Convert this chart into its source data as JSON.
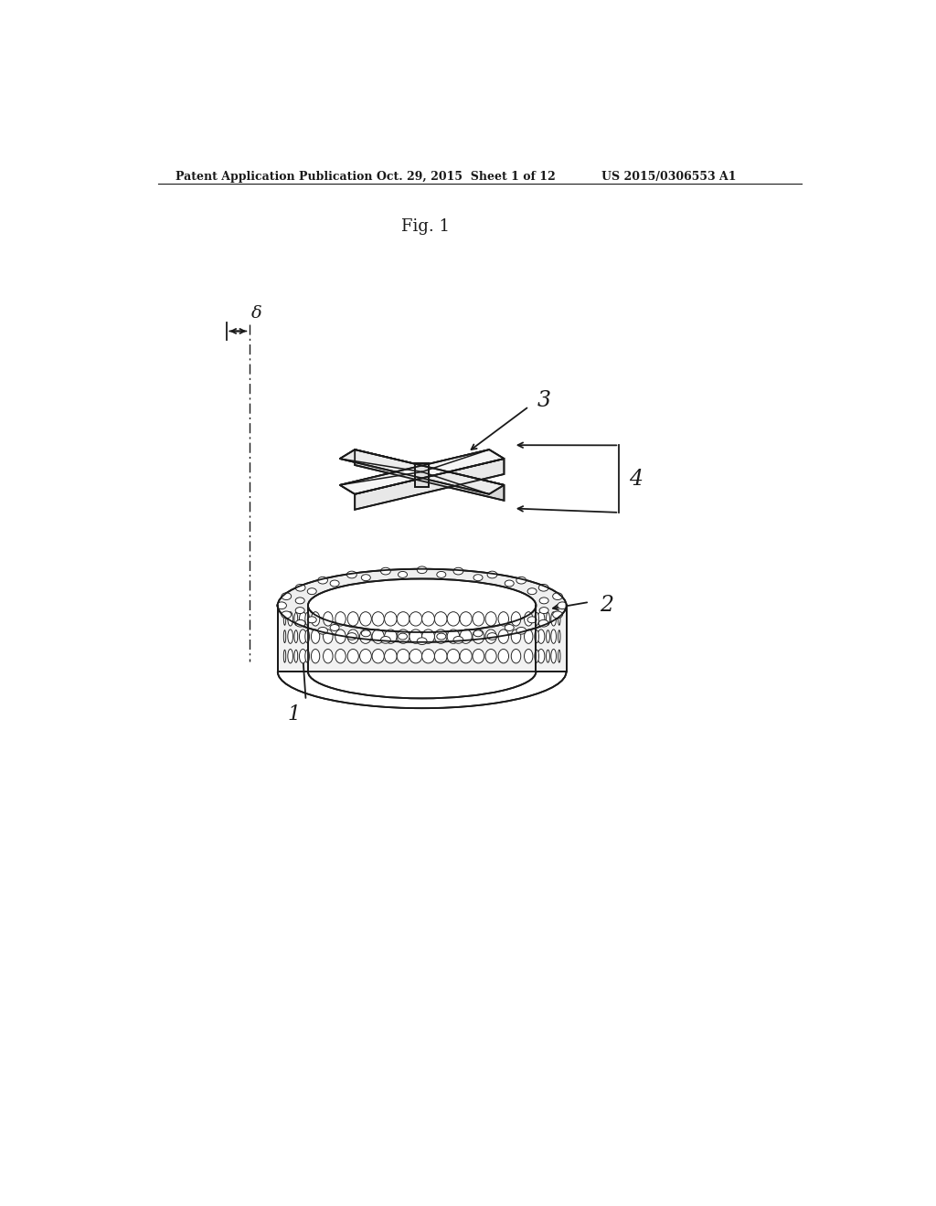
{
  "header_left": "Patent Application Publication",
  "header_mid": "Oct. 29, 2015  Sheet 1 of 12",
  "header_right": "US 2015/0306553 A1",
  "fig_label": "Fig. 1",
  "delta_label": "δ",
  "bg_color": "#ffffff",
  "line_color": "#1a1a1a",
  "line_width": 1.3
}
